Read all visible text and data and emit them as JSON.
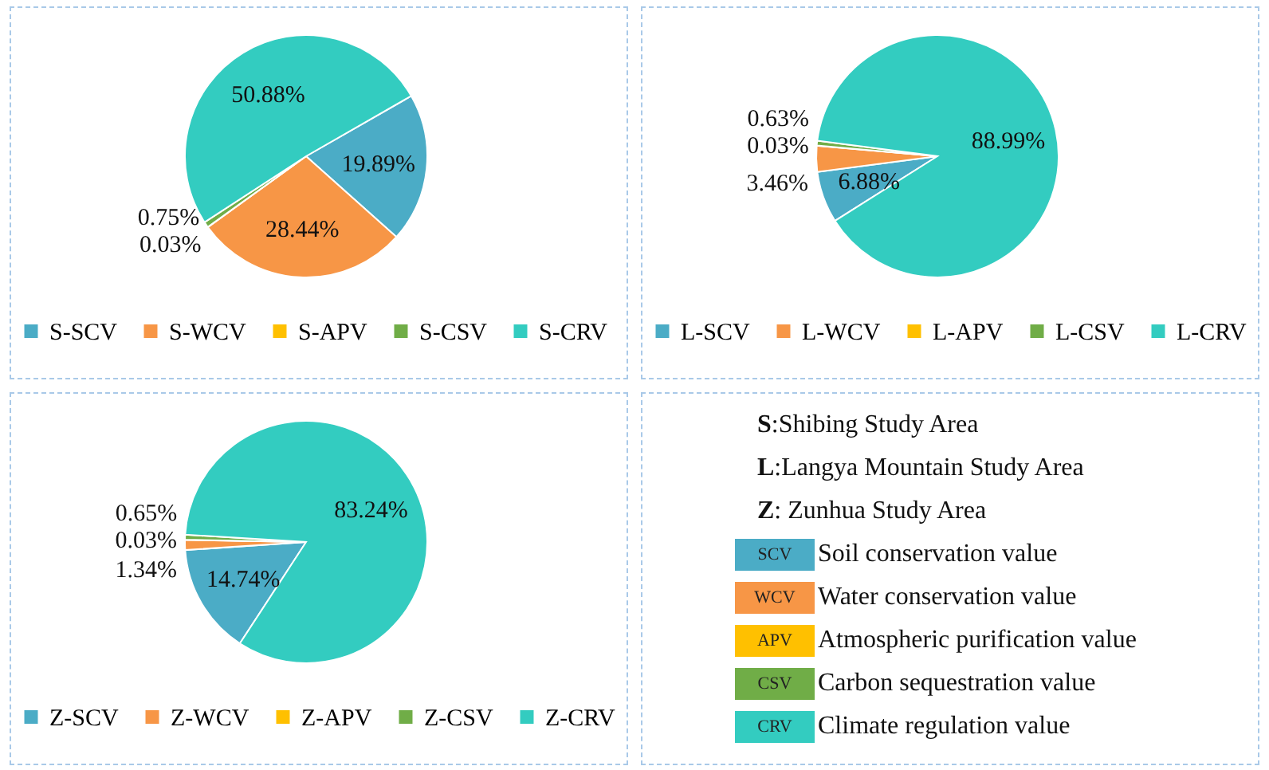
{
  "chart_data": [
    {
      "type": "pie",
      "categories": [
        "S-SCV",
        "S-WCV",
        "S-APV",
        "S-CSV",
        "S-CRV"
      ],
      "values": [
        19.89,
        28.44,
        0.03,
        0.75,
        50.88
      ],
      "value_labels": [
        "19.89%",
        "28.44%",
        "0.03%",
        "0.75%",
        "50.88%"
      ],
      "colors": [
        "#4bacc6",
        "#f79646",
        "#ffc000",
        "#70ad47",
        "#33ccc0"
      ],
      "legend": "bottom"
    },
    {
      "type": "pie",
      "categories": [
        "L-SCV",
        "L-WCV",
        "L-APV",
        "L-CSV",
        "L-CRV"
      ],
      "values": [
        6.88,
        3.46,
        0.03,
        0.63,
        88.99
      ],
      "value_labels": [
        "6.88%",
        "3.46%",
        "0.03%",
        "0.63%",
        "88.99%"
      ],
      "colors": [
        "#4bacc6",
        "#f79646",
        "#ffc000",
        "#70ad47",
        "#33ccc0"
      ],
      "legend": "bottom"
    },
    {
      "type": "pie",
      "categories": [
        "Z-SCV",
        "Z-WCV",
        "Z-APV",
        "Z-CSV",
        "Z-CRV"
      ],
      "values": [
        14.74,
        1.34,
        0.03,
        0.65,
        83.24
      ],
      "value_labels": [
        "14.74%",
        "1.34%",
        "0.03%",
        "0.65%",
        "83.24%"
      ],
      "colors": [
        "#4bacc6",
        "#f79646",
        "#ffc000",
        "#70ad47",
        "#33ccc0"
      ],
      "legend": "bottom"
    },
    {
      "type": "other",
      "annotations": [
        "S:Shibing  Study Area",
        "L:Langya Mountain Study Area",
        "Z: Zunhua Study Area",
        "SCV",
        "Soil conservation value",
        "WCV",
        "Water conservation value",
        "APV",
        "Atmospheric purification value",
        "CSV",
        "Carbon sequestration value",
        "CRV",
        "Climate regulation value"
      ]
    }
  ]
}
